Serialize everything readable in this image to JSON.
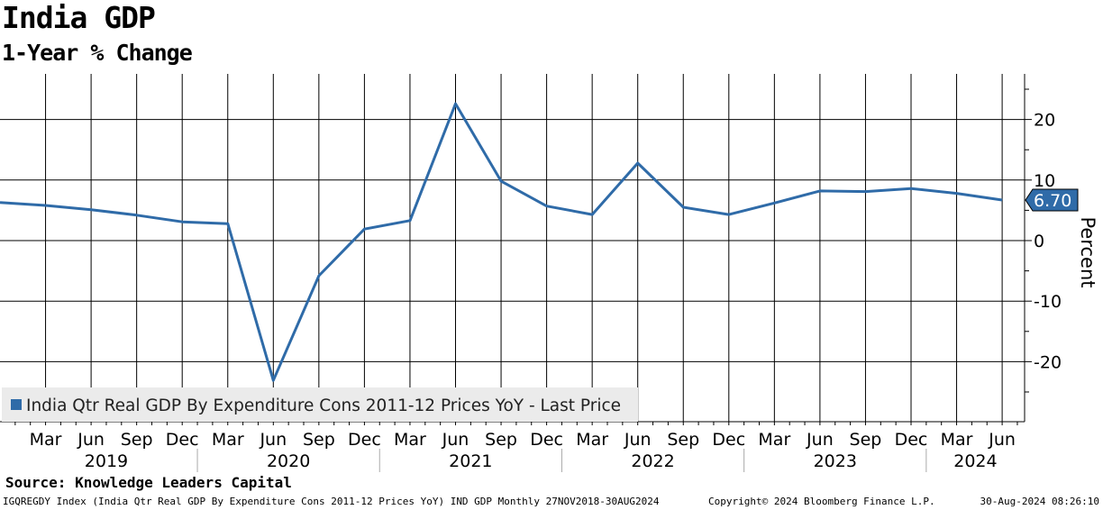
{
  "title": "India GDP",
  "subtitle": "1-Year % Change",
  "chart_data": {
    "type": "line",
    "ylabel": "Percent",
    "ylim": [
      -30,
      28
    ],
    "yticks": [
      20,
      10,
      0,
      -10,
      -20
    ],
    "grid": true,
    "legend_position": "bottom-left",
    "last_value_label": "6.70",
    "month_labels": [
      "Mar",
      "Jun",
      "Sep",
      "Dec",
      "Mar",
      "Jun",
      "Sep",
      "Dec",
      "Mar",
      "Jun",
      "Sep",
      "Dec",
      "Mar",
      "Jun",
      "Sep",
      "Dec",
      "Mar",
      "Jun",
      "Sep",
      "Dec",
      "Mar",
      "Jun"
    ],
    "year_labels": [
      "2019",
      "2020",
      "2021",
      "2022",
      "2023",
      "2024"
    ],
    "series": [
      {
        "name": "India Qtr Real GDP By Expenditure Cons 2011-12 Prices YoY - Last Price",
        "color": "#2f6ba8",
        "x": [
          "2018-12",
          "2019-03",
          "2019-06",
          "2019-09",
          "2019-12",
          "2020-03",
          "2020-06",
          "2020-09",
          "2020-12",
          "2021-03",
          "2021-06",
          "2021-09",
          "2021-12",
          "2022-03",
          "2022-06",
          "2022-09",
          "2022-12",
          "2023-03",
          "2023-06",
          "2023-09",
          "2023-12",
          "2024-03",
          "2024-06"
        ],
        "values": [
          6.3,
          5.8,
          5.1,
          4.2,
          3.1,
          2.8,
          -23.1,
          -5.8,
          1.9,
          3.3,
          22.6,
          9.8,
          5.7,
          4.3,
          12.8,
          5.5,
          4.3,
          6.2,
          8.2,
          8.1,
          8.6,
          7.8,
          6.7
        ]
      }
    ]
  },
  "source": "Source: Knowledge Leaders Capital",
  "footer": {
    "left": "IGQREGDY Index (India Qtr Real GDP By Expenditure Cons 2011-12 Prices YoY) IND GDP  Monthly 27NOV2018-30AUG2024",
    "center": "Copyright© 2024 Bloomberg Finance L.P.",
    "right": "30-Aug-2024 08:26:10"
  }
}
